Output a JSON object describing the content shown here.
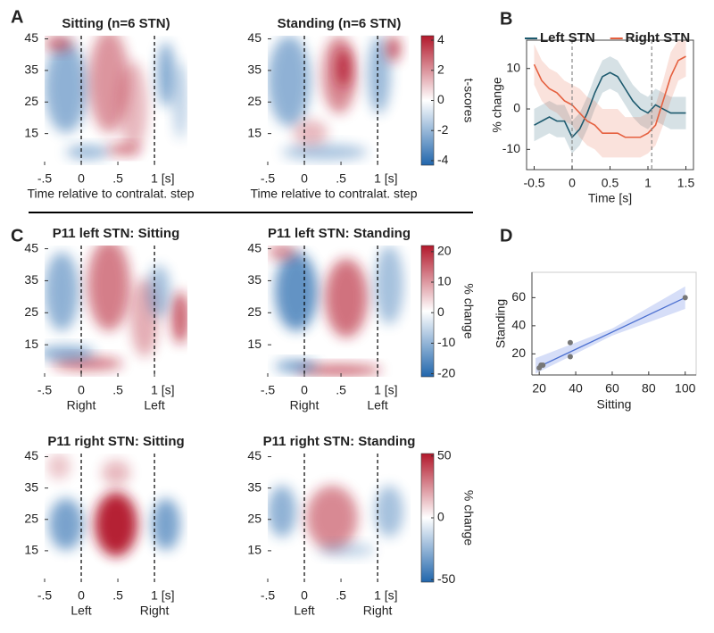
{
  "panel_labels": [
    "A",
    "B",
    "C",
    "D"
  ],
  "chart_data": [
    {
      "type": "heatmap",
      "title": "Sitting (n=6 STN)",
      "xlabel": "Time relative to contralat. step",
      "xlim": [
        -0.5,
        1.45
      ],
      "ylim": [
        5,
        46
      ],
      "xticks": [
        {
          "value": -0.5,
          "label": "-.5"
        },
        0,
        {
          "value": 0.5,
          "label": ".5"
        },
        {
          "value": 1,
          "label": "1 [s]"
        }
      ],
      "yticks": [
        15,
        25,
        35,
        45
      ],
      "events": [
        {
          "x": 0
        },
        {
          "x": 1
        }
      ],
      "colors": [
        "#2166ac",
        "#ffffff",
        "#b2182b"
      ]
    },
    {
      "type": "heatmap",
      "title": "Standing (n=6 STN)",
      "xlabel": "Time relative to contralat. step",
      "xlim": [
        -0.5,
        1.45
      ],
      "ylim": [
        5,
        46
      ],
      "xticks": [
        {
          "value": -0.5,
          "label": "-.5"
        },
        0,
        {
          "value": 0.5,
          "label": ".5"
        },
        {
          "value": 1,
          "label": "1 [s]"
        }
      ],
      "yticks": [
        15,
        25,
        35,
        45
      ],
      "events": [
        {
          "x": 0
        },
        {
          "x": 1
        }
      ],
      "colors": [
        "#2166ac",
        "#ffffff",
        "#b2182b"
      ],
      "colorbar": {
        "label": "t-scores",
        "lim": [
          -4.3,
          4.3
        ],
        "ticks": [
          -4,
          -2,
          0,
          2,
          4
        ]
      }
    },
    {
      "type": "line",
      "xlabel": "Time [s]",
      "ylabel": "% change",
      "xlim": [
        -0.6,
        1.6
      ],
      "ylim": [
        -15,
        17
      ],
      "xticks": [
        -0.5,
        0,
        0.5,
        1,
        1.5
      ],
      "yticks": [
        -10,
        0,
        10
      ],
      "events": [
        {
          "x": 0
        },
        {
          "x": 1.05
        }
      ],
      "x": [
        -0.5,
        -0.4,
        -0.3,
        -0.2,
        -0.1,
        0,
        0.1,
        0.2,
        0.3,
        0.4,
        0.5,
        0.6,
        0.7,
        0.8,
        0.9,
        1,
        1.1,
        1.2,
        1.3,
        1.4,
        1.5
      ],
      "series": [
        {
          "name": "Left STN",
          "color": "#1d5a6e",
          "values": [
            -4,
            -3,
            -2,
            -3,
            -3,
            -7,
            -5,
            -1,
            4,
            8,
            9,
            8,
            5,
            2,
            0,
            -1,
            1,
            0,
            -1,
            -1,
            -1
          ],
          "lower": [
            -8,
            -7,
            -6,
            -7,
            -7,
            -11,
            -9,
            -5,
            0,
            4,
            5,
            4,
            1,
            -2,
            -4,
            -5,
            -3,
            -4,
            -5,
            -5,
            -5
          ],
          "upper": [
            0,
            1,
            2,
            1,
            1,
            -3,
            -1,
            3,
            8,
            12,
            13,
            12,
            9,
            6,
            4,
            3,
            5,
            4,
            3,
            3,
            3
          ]
        },
        {
          "name": "Right STN",
          "color": "#e5603f",
          "values": [
            11,
            7,
            5,
            4,
            2,
            1,
            -1,
            -3,
            -4,
            -6,
            -6,
            -6,
            -7,
            -7,
            -7,
            -6,
            -4,
            2,
            8,
            12,
            13
          ],
          "lower": [
            6,
            2,
            0,
            -1,
            -3,
            -4,
            -7,
            -9,
            -10,
            -12,
            -12,
            -12,
            -12,
            -12,
            -12,
            -11,
            -9,
            -4,
            2,
            7,
            8
          ],
          "upper": [
            16,
            12,
            10,
            9,
            7,
            6,
            5,
            3,
            2,
            0,
            0,
            0,
            -2,
            -2,
            -2,
            -1,
            1,
            7,
            14,
            17,
            17
          ]
        }
      ]
    },
    {
      "type": "heatmap",
      "title": "P11 left STN: Sitting",
      "xlim": [
        -0.5,
        1.45
      ],
      "ylim": [
        5,
        46
      ],
      "xticks": [
        {
          "value": -0.5,
          "label": "-.5"
        },
        0,
        {
          "value": 0.5,
          "label": ".5"
        },
        {
          "value": 1,
          "label": "1 [s]"
        }
      ],
      "yticks": [
        15,
        25,
        35,
        45
      ],
      "events": [
        {
          "x": 0,
          "label": "Right"
        },
        {
          "x": 1,
          "label": "Left"
        }
      ],
      "colors": [
        "#2166ac",
        "#ffffff",
        "#b2182b"
      ]
    },
    {
      "type": "heatmap",
      "title": "P11 left STN: Standing",
      "xlim": [
        -0.5,
        1.45
      ],
      "ylim": [
        5,
        46
      ],
      "xticks": [
        {
          "value": -0.5,
          "label": "-.5"
        },
        0,
        {
          "value": 0.5,
          "label": ".5"
        },
        {
          "value": 1,
          "label": "1 [s]"
        }
      ],
      "yticks": [
        15,
        25,
        35,
        45
      ],
      "events": [
        {
          "x": 0,
          "label": "Right"
        },
        {
          "x": 1,
          "label": "Left"
        }
      ],
      "colors": [
        "#2166ac",
        "#ffffff",
        "#b2182b"
      ],
      "colorbar": {
        "label": "% change",
        "lim": [
          -21,
          22
        ],
        "ticks": [
          -20,
          -10,
          0,
          10,
          20
        ]
      }
    },
    {
      "type": "heatmap",
      "title": "P11 right STN: Sitting",
      "xlim": [
        -0.5,
        1.45
      ],
      "ylim": [
        5,
        46
      ],
      "xticks": [
        {
          "value": -0.5,
          "label": "-.5"
        },
        0,
        {
          "value": 0.5,
          "label": ".5"
        },
        {
          "value": 1,
          "label": "1 [s]"
        }
      ],
      "yticks": [
        15,
        25,
        35,
        45
      ],
      "events": [
        {
          "x": 0,
          "label": "Left"
        },
        {
          "x": 1,
          "label": "Right"
        }
      ],
      "colors": [
        "#2166ac",
        "#ffffff",
        "#b2182b"
      ]
    },
    {
      "type": "heatmap",
      "title": "P11 right STN: Standing",
      "xlim": [
        -0.5,
        1.45
      ],
      "ylim": [
        5,
        46
      ],
      "xticks": [
        {
          "value": -0.5,
          "label": "-.5"
        },
        0,
        {
          "value": 0.5,
          "label": ".5"
        },
        {
          "value": 1,
          "label": "1 [s]"
        }
      ],
      "yticks": [
        15,
        25,
        35,
        45
      ],
      "events": [
        {
          "x": 0,
          "label": "Left"
        },
        {
          "x": 1,
          "label": "Right"
        }
      ],
      "colors": [
        "#2166ac",
        "#ffffff",
        "#b2182b"
      ],
      "colorbar": {
        "label": "% change",
        "lim": [
          -52,
          52
        ],
        "ticks": [
          -50,
          0,
          50
        ]
      }
    },
    {
      "type": "scatter",
      "xlabel": "Sitting",
      "ylabel": "Standing",
      "xlim": [
        16,
        106
      ],
      "ylim": [
        5,
        78
      ],
      "xticks": [
        20,
        40,
        60,
        80,
        100
      ],
      "yticks": [
        20,
        40,
        60
      ],
      "color": "#777777",
      "x": [
        20,
        21,
        22,
        37,
        37,
        100
      ],
      "values": [
        10,
        12,
        12,
        18,
        28,
        60
      ],
      "fit": {
        "color": "#4a6fd0",
        "x": [
          20,
          100
        ],
        "values": [
          11,
          60
        ]
      },
      "fit_band": {
        "color": "#ccd6f6",
        "x": [
          18,
          60,
          100
        ],
        "lower": [
          6,
          33,
          52
        ],
        "upper": [
          17,
          38,
          68
        ]
      }
    }
  ]
}
